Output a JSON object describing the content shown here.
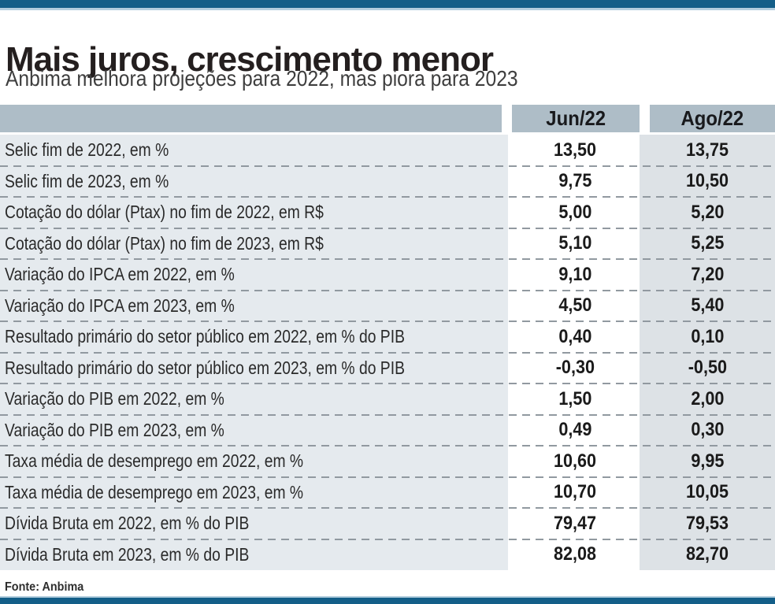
{
  "title": "Mais juros, crescimento menor",
  "subtitle": "Anbima melhora projeções para 2022, mas piora para 2023",
  "source": "Fonte: Anbima",
  "table": {
    "columns": {
      "jun": "Jun/22",
      "ago": "Ago/22"
    },
    "rows": [
      {
        "label": "Selic fim de 2022, em %",
        "jun": "13,50",
        "ago": "13,75"
      },
      {
        "label": "Selic fim de 2023, em %",
        "jun": "9,75",
        "ago": "10,50"
      },
      {
        "label": "Cotação do dólar (Ptax) no fim de 2022, em R$",
        "jun": "5,00",
        "ago": "5,20"
      },
      {
        "label": "Cotação do dólar (Ptax) no fim de 2023, em R$",
        "jun": "5,10",
        "ago": "5,25"
      },
      {
        "label": "Variação do IPCA em 2022, em %",
        "jun": "9,10",
        "ago": "7,20"
      },
      {
        "label": "Variação do IPCA em 2023, em %",
        "jun": "4,50",
        "ago": "5,40"
      },
      {
        "label": "Resultado primário do setor público em 2022, em % do PIB",
        "jun": "0,40",
        "ago": "0,10"
      },
      {
        "label": "Resultado primário do setor público em 2023, em % do PIB",
        "jun": "-0,30",
        "ago": "-0,50"
      },
      {
        "label": "Variação do PIB em 2022, em %",
        "jun": "1,50",
        "ago": "2,00"
      },
      {
        "label": "Variação do PIB em 2023, em %",
        "jun": "0,49",
        "ago": "0,30"
      },
      {
        "label": "Taxa média de desemprego em 2022, em %",
        "jun": "10,60",
        "ago": "9,95"
      },
      {
        "label": "Taxa média de desemprego em 2023, em %",
        "jun": "10,70",
        "ago": "10,05"
      },
      {
        "label": "Dívida Bruta em 2022, em % do PIB",
        "jun": "79,47",
        "ago": "79,53"
      },
      {
        "label": "Dívida Bruta em 2023, em % do PIB",
        "jun": "82,08",
        "ago": "82,70"
      }
    ]
  },
  "colors": {
    "bar_blue": "#135e88",
    "accent_light_blue": "#b3cede",
    "header_cell_bg": "#aebdc7",
    "row_base_bg": "#e5eaee",
    "jun_column_bg": "#ffffff",
    "ago_column_bg": "#dde2e6",
    "dashed_separator": "#9199a0",
    "title_text": "#241f1f"
  },
  "chart_data": {
    "type": "table",
    "title": "Mais juros, crescimento menor",
    "subtitle": "Anbima melhora projeções para 2022, mas piora para 2023",
    "columns": [
      "Jun/22",
      "Ago/22"
    ],
    "categories": [
      "Selic fim de 2022, em %",
      "Selic fim de 2023, em %",
      "Cotação do dólar (Ptax) no fim de 2022, em R$",
      "Cotação do dólar (Ptax) no fim de 2023, em R$",
      "Variação do IPCA em 2022, em %",
      "Variação do IPCA em 2023, em %",
      "Resultado primário do setor público em 2022, em % do PIB",
      "Resultado primário do setor público em 2023, em % do PIB",
      "Variação do PIB em 2022, em %",
      "Variação do PIB em 2023, em %",
      "Taxa média de desemprego em 2022, em %",
      "Taxa média de desemprego em 2023, em %",
      "Dívida Bruta em 2022, em % do PIB",
      "Dívida Bruta em 2023, em % do PIB"
    ],
    "series": [
      {
        "name": "Jun/22",
        "values": [
          13.5,
          9.75,
          5.0,
          5.1,
          9.1,
          4.5,
          0.4,
          -0.3,
          1.5,
          0.49,
          10.6,
          10.7,
          79.47,
          82.08
        ]
      },
      {
        "name": "Ago/22",
        "values": [
          13.75,
          10.5,
          5.2,
          5.25,
          7.2,
          5.4,
          0.1,
          -0.5,
          2.0,
          0.3,
          9.95,
          10.05,
          79.53,
          82.7
        ]
      }
    ],
    "source": "Fonte: Anbima"
  }
}
